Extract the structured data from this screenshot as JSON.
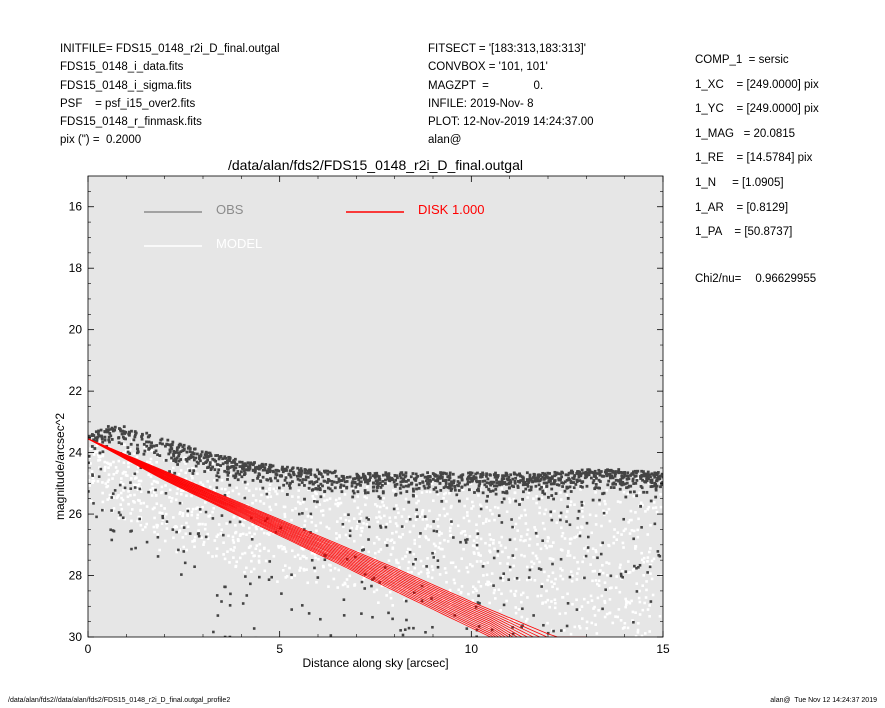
{
  "header_left": [
    "INITFILE= FDS15_0148_r2i_D_final.outgal",
    "FDS15_0148_i_data.fits",
    "FDS15_0148_i_sigma.fits",
    "PSF    = psf_i15_over2.fits",
    "FDS15_0148_r_finmask.fits",
    "pix (\") =  0.2000"
  ],
  "header_mid": [
    "FITSECT = '[183:313,183:313]'",
    "CONVBOX = '101, 101'",
    "MAGZPT  =              0.",
    "INFILE: 2019-Nov- 8",
    "PLOT: 12-Nov-2019 14:24:37.00",
    "alan@"
  ],
  "header_right": [
    "COMP_1  = sersic",
    "1_XC    = [249.0000] pix",
    "1_YC    = [249.0000] pix",
    "1_MAG   = 20.0815",
    "1_RE    = [14.5784] pix",
    "1_N     = [1.0905]",
    "1_AR    = [0.8129]",
    "1_PA    = [50.8737]"
  ],
  "chi2": {
    "label": "Chi2/nu=",
    "value": "0.96629955"
  },
  "footer_left": "/data/alan/fds2//data/alan/fds2/FDS15_0148_r2i_D_final.outgal_profile2",
  "footer_right": "alan@  Tue Nov 12 14:24:37 2019",
  "colors": {
    "background": "#e6e6e6",
    "obs": "#444444",
    "model": "#ffffff",
    "disk": "#ff0000",
    "obs_legend": "#8c8c8c",
    "model_legend": "#ffffff"
  },
  "chart_data": {
    "type": "scatter",
    "title": "/data/alan/fds2/FDS15_0148_r2i_D_final.outgal",
    "xlabel": "Distance along sky [arcsec]",
    "ylabel": "magnitude/arcsec^2",
    "xlim": [
      0,
      15
    ],
    "ylim": [
      30,
      15
    ],
    "inverted_y": true,
    "grid": false,
    "x_ticks": [
      0,
      5,
      10,
      15
    ],
    "y_ticks": [
      16,
      18,
      20,
      22,
      24,
      26,
      28,
      30
    ],
    "legend": [
      {
        "name": "OBS",
        "color": "#8c8c8c"
      },
      {
        "name": "MODEL",
        "color": "#ffffff"
      },
      {
        "name": "DISK  1.000",
        "color": "#ff0000"
      }
    ],
    "series": [
      {
        "name": "OBS",
        "kind": "points",
        "color": "#444444",
        "trend_upper_x": [
          0,
          0.5,
          1,
          2,
          3,
          4,
          5,
          6,
          7,
          8,
          9,
          10,
          11,
          12,
          13,
          14,
          15
        ],
        "trend_upper_y": [
          23.6,
          23.3,
          23.3,
          23.7,
          24.1,
          24.4,
          24.6,
          24.7,
          24.8,
          24.8,
          24.8,
          24.8,
          24.8,
          24.8,
          24.7,
          24.7,
          24.8
        ],
        "scatter_range_y": [
          23.1,
          30
        ]
      },
      {
        "name": "MODEL",
        "kind": "points",
        "color": "#ffffff",
        "trend_lower_x": [
          0,
          1,
          2,
          3,
          5,
          7,
          9,
          11,
          13,
          15
        ],
        "trend_lower_y": [
          23.8,
          24.6,
          25.2,
          25.7,
          26.3,
          26.8,
          27.3,
          27.8,
          28.3,
          28.8
        ],
        "scatter_range_y": [
          23.6,
          30
        ]
      },
      {
        "name": "DISK  1.000",
        "kind": "band",
        "color": "#ff0000",
        "upper_x": [
          0,
          2,
          4,
          6,
          8,
          10,
          12,
          12.2
        ],
        "upper_y": [
          23.55,
          24.6,
          25.65,
          26.7,
          27.75,
          28.85,
          29.9,
          30
        ],
        "lower_x": [
          0,
          2,
          4,
          6,
          8,
          10,
          10.5,
          11
        ],
        "lower_y": [
          23.55,
          24.9,
          26.1,
          27.3,
          28.5,
          29.7,
          30,
          30
        ]
      }
    ]
  }
}
